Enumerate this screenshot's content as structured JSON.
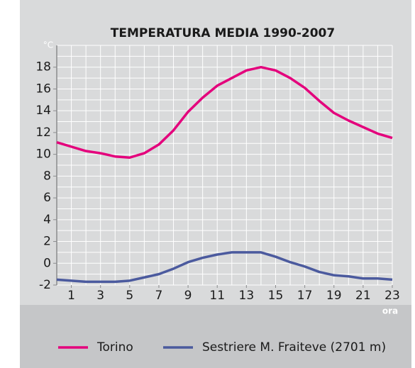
{
  "chart_data": {
    "type": "line",
    "title": "TEMPERATURA MEDIA 1990-2007",
    "y_label": "°C",
    "x_label": "ora",
    "x": [
      0,
      1,
      2,
      3,
      4,
      5,
      6,
      7,
      8,
      9,
      10,
      11,
      12,
      13,
      14,
      15,
      16,
      17,
      18,
      19,
      20,
      21,
      22,
      23
    ],
    "series": [
      {
        "name": "Torino",
        "color": "#e4007c",
        "values": [
          11.1,
          10.7,
          10.3,
          10.1,
          9.8,
          9.7,
          10.1,
          10.9,
          12.2,
          13.9,
          15.2,
          16.3,
          17.0,
          17.7,
          18.0,
          17.7,
          17.0,
          16.1,
          14.9,
          13.8,
          13.1,
          12.5,
          11.9,
          11.5
        ]
      },
      {
        "name": "Sestriere M. Fraiteve (2701 m)",
        "color": "#4b5a9e",
        "values": [
          -1.5,
          -1.6,
          -1.7,
          -1.7,
          -1.7,
          -1.6,
          -1.3,
          -1.0,
          -0.5,
          0.1,
          0.5,
          0.8,
          1.0,
          1.0,
          1.0,
          0.6,
          0.1,
          -0.3,
          -0.8,
          -1.1,
          -1.2,
          -1.4,
          -1.4,
          -1.5
        ]
      }
    ],
    "xlim": [
      0,
      23
    ],
    "xticks": [
      1,
      3,
      5,
      7,
      9,
      11,
      13,
      15,
      17,
      19,
      21,
      23
    ],
    "ylim": [
      -2,
      20
    ],
    "yticks": [
      -2,
      0,
      2,
      4,
      6,
      8,
      10,
      12,
      14,
      16,
      18
    ],
    "grid": true,
    "grid_step": 1
  }
}
